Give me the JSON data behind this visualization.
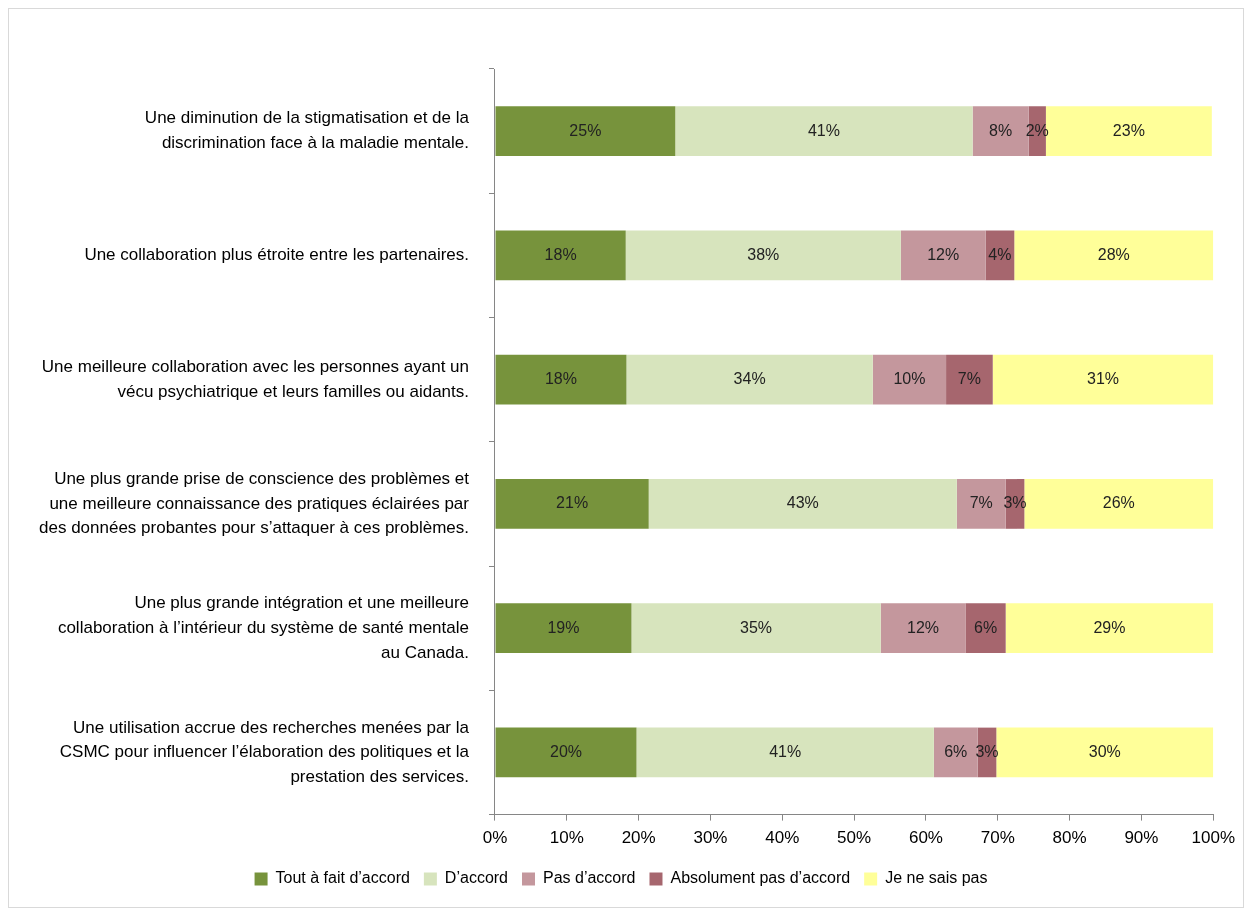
{
  "chart_data": {
    "type": "bar",
    "orientation": "horizontal",
    "stacked": true,
    "categories": [
      "Une diminution de la stigmatisation et de la discrimination face à la maladie mentale.",
      "Une collaboration plus étroite entre les partenaires.",
      "Une meilleure collaboration avec les personnes ayant un vécu psychiatrique et leurs familles ou aidants.",
      "Une plus grande prise de conscience des problèmes et une meilleure connaissance des pratiques éclairées par des données probantes pour s’attaquer à ces problèmes.",
      "Une plus grande intégration et une meilleure collaboration à l’intérieur du système de santé mentale au Canada.",
      "Une utilisation accrue des recherches menées par la CSMC pour influencer l’élaboration des politiques et la prestation des services."
    ],
    "series": [
      {
        "name": "Tout à fait d’accord",
        "color": "#77933c",
        "values": [
          25.1,
          18.2,
          18.3,
          21.4,
          19.0,
          19.7
        ],
        "value_labels": [
          "25%",
          "18%",
          "18%",
          "21%",
          "19%",
          "20%"
        ]
      },
      {
        "name": "D’accord",
        "color": "#d7e4bd",
        "values": [
          41.4,
          38.3,
          34.3,
          42.9,
          34.7,
          41.4
        ],
        "value_labels": [
          "41%",
          "38%",
          "34%",
          "43%",
          "35%",
          "41%"
        ]
      },
      {
        "name": "Pas d’accord",
        "color": "#c4979d",
        "values": [
          7.8,
          11.8,
          10.2,
          6.8,
          11.8,
          6.1
        ],
        "value_labels": [
          "8%",
          "12%",
          "10%",
          "7%",
          "12%",
          "6%"
        ]
      },
      {
        "name": "Absolument pas d’accord",
        "color": "#a6666e",
        "values": [
          2.4,
          4.0,
          6.5,
          2.6,
          5.6,
          2.6
        ],
        "value_labels": [
          "2%",
          "4%",
          "7%",
          "3%",
          "6%",
          "3%"
        ]
      },
      {
        "name": "Je ne sais pas",
        "color": "#ffff99",
        "values": [
          23.1,
          27.7,
          30.7,
          26.3,
          28.9,
          30.2
        ],
        "value_labels": [
          "23%",
          "28%",
          "31%",
          "26%",
          "29%",
          "30%"
        ]
      }
    ],
    "xlim": [
      0,
      100
    ],
    "xticks": [
      {
        "value": 0,
        "label": "0%"
      },
      {
        "value": 10,
        "label": "10%"
      },
      {
        "value": 20,
        "label": "20%"
      },
      {
        "value": 30,
        "label": "30%"
      },
      {
        "value": 40,
        "label": "40%"
      },
      {
        "value": 50,
        "label": "50%"
      },
      {
        "value": 60,
        "label": "60%"
      },
      {
        "value": 70,
        "label": "70%"
      },
      {
        "value": 80,
        "label": "80%"
      },
      {
        "value": 90,
        "label": "90%"
      },
      {
        "value": 100,
        "label": "100%"
      }
    ],
    "grid": false,
    "legend": "bottom"
  }
}
